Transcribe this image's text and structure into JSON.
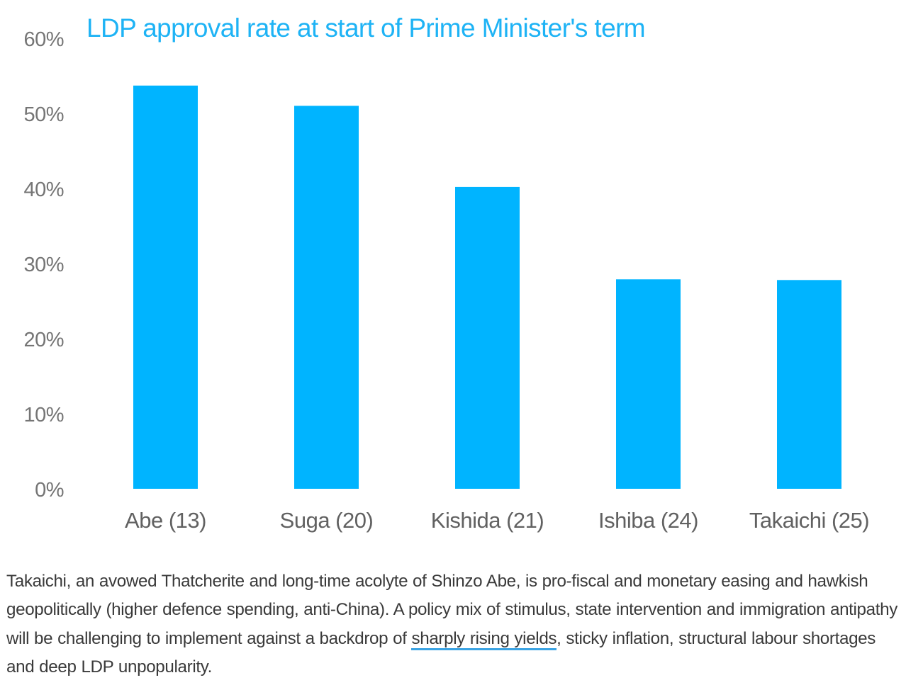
{
  "chart_data": {
    "type": "bar",
    "title": "LDP approval rate at start of Prime Minister's term",
    "categories": [
      "Abe (13)",
      "Suga (20)",
      "Kishida (21)",
      "Ishiba (24)",
      "Takaichi (25)"
    ],
    "values": [
      53.7,
      51,
      40.2,
      27.9,
      27.8
    ],
    "ylim": [
      0,
      60
    ],
    "yticks": [
      0,
      10,
      20,
      30,
      40,
      50,
      60
    ],
    "ytick_labels": [
      "0%",
      "10%",
      "20%",
      "30%",
      "40%",
      "50%",
      "60%"
    ],
    "xlabel": "",
    "ylabel": "",
    "grid": false,
    "bar_color": "#00b4ff",
    "title_color": "#1eb3f5"
  },
  "caption": {
    "before_link": "Takaichi, an avowed Thatcherite and long-time acolyte of Shinzo Abe, is pro-fiscal and monetary easing and hawkish geopolitically (higher defence spending, anti-China). A policy mix of stimulus, state intervention and immigration antipathy will be challenging to implement against a backdrop of ",
    "link_text": "sharply rising yields",
    "after_link": ", sticky inflation, structural labour shortages and deep LDP unpopularity."
  }
}
